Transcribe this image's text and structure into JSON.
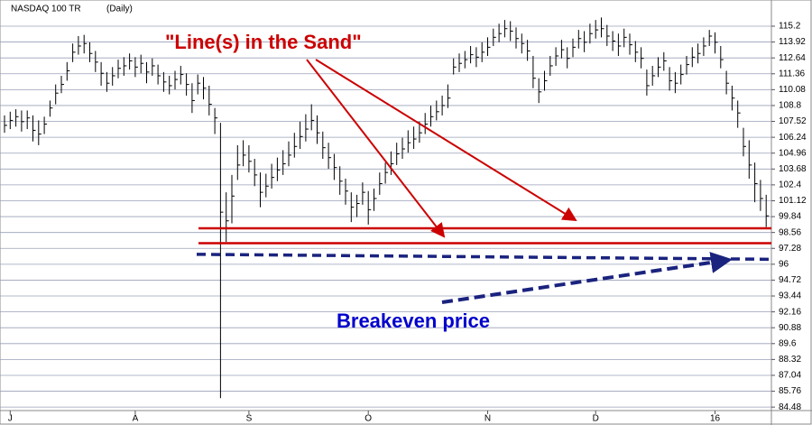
{
  "chart_data": {
    "type": "ohlc",
    "title": "NASDAQ 100 TR",
    "subtitle": "(Daily)",
    "annotations": {
      "sand": "\"Line(s) in the Sand\"",
      "breakeven": "Breakeven price"
    },
    "ylim": [
      84.2,
      116
    ],
    "yticks": [
      84.48,
      85.76,
      87.04,
      88.32,
      89.6,
      90.88,
      92.16,
      93.44,
      94.72,
      96,
      97.28,
      98.56,
      99.84,
      101.12,
      102.4,
      103.68,
      104.96,
      106.24,
      107.52,
      108.8,
      110.08,
      111.36,
      112.64,
      113.92,
      115.2
    ],
    "xticks": [
      {
        "value": 1,
        "label": "J"
      },
      {
        "value": 23,
        "label": "A"
      },
      {
        "value": 43,
        "label": "S"
      },
      {
        "value": 64,
        "label": "O"
      },
      {
        "value": 85,
        "label": "N"
      },
      {
        "value": 104,
        "label": "D"
      },
      {
        "value": 125,
        "label": "16"
      }
    ],
    "grid": true,
    "color": "#000000",
    "sand_lines": {
      "values": [
        98.9,
        97.7
      ],
      "color": "#cc0000"
    },
    "breakeven_line": {
      "values": [
        96.8,
        96.4
      ],
      "color": "#1a237e"
    },
    "high": [
      108.0,
      108.3,
      108.5,
      108.4,
      108.4,
      108.0,
      107.6,
      107.9,
      109.2,
      110.5,
      111.2,
      112.3,
      113.8,
      114.4,
      114.5,
      113.9,
      113.2,
      112.3,
      111.5,
      111.9,
      112.5,
      112.7,
      113.0,
      112.7,
      112.9,
      112.3,
      112.6,
      112.1,
      111.5,
      111.2,
      111.6,
      112.0,
      111.4,
      110.6,
      111.3,
      111.1,
      110.4,
      108.6,
      107.4,
      101.8,
      103.2,
      105.6,
      106.0,
      105.6,
      104.5,
      103.4,
      103.3,
      104.1,
      104.6,
      105.2,
      105.9,
      106.6,
      107.5,
      108.1,
      108.9,
      108.0,
      106.7,
      105.8,
      104.9,
      103.9,
      102.9,
      101.8,
      101.6,
      102.6,
      101.9,
      102.1,
      103.4,
      104.2,
      105.1,
      105.8,
      106.2,
      106.8,
      107.1,
      107.5,
      108.2,
      108.8,
      109.2,
      109.6,
      110.5,
      112.6,
      113.0,
      113.2,
      113.6,
      113.5,
      113.9,
      114.3,
      115.0,
      115.4,
      115.7,
      115.6,
      115.1,
      114.6,
      114.1,
      112.8,
      111.0,
      111.6,
      112.8,
      113.5,
      114.1,
      113.5,
      114.2,
      114.9,
      114.8,
      115.4,
      115.7,
      115.9,
      115.3,
      114.8,
      114.6,
      115.0,
      114.6,
      114.0,
      113.5,
      111.7,
      112.0,
      112.7,
      113.1,
      111.9,
      111.5,
      112.1,
      112.8,
      113.5,
      113.8,
      114.3,
      114.9,
      114.7,
      113.6,
      111.6,
      110.4,
      109.2,
      107.0,
      106.0,
      104.2,
      102.8,
      101.6
    ],
    "low": [
      106.6,
      106.9,
      107.1,
      106.7,
      106.9,
      105.9,
      105.6,
      106.5,
      107.9,
      108.9,
      109.8,
      110.8,
      112.3,
      112.9,
      113.0,
      112.3,
      111.5,
      110.4,
      109.9,
      110.4,
      111.0,
      111.2,
      111.7,
      111.1,
      111.4,
      110.6,
      111.2,
      110.5,
      109.9,
      109.7,
      110.1,
      110.5,
      109.6,
      108.2,
      109.7,
      109.3,
      108.0,
      106.5,
      85.2,
      97.8,
      99.3,
      102.8,
      103.9,
      103.4,
      102.3,
      100.6,
      101.4,
      102.1,
      102.7,
      103.2,
      103.9,
      104.6,
      105.3,
      105.9,
      106.8,
      105.7,
      104.5,
      103.7,
      102.8,
      101.6,
      100.8,
      99.4,
      99.8,
      100.8,
      99.2,
      100.3,
      101.6,
      102.5,
      103.2,
      104.0,
      104.5,
      105.0,
      105.3,
      105.8,
      106.5,
      107.1,
      107.6,
      108.0,
      108.6,
      111.3,
      111.5,
      111.8,
      112.2,
      111.9,
      112.3,
      112.8,
      113.6,
      113.9,
      114.3,
      114.0,
      113.4,
      113.0,
      112.4,
      110.2,
      109.0,
      110.0,
      111.2,
      112.0,
      112.6,
      111.8,
      112.7,
      113.4,
      113.1,
      113.8,
      114.2,
      114.3,
      113.6,
      113.2,
      112.8,
      113.5,
      112.9,
      112.3,
      111.8,
      109.6,
      110.4,
      111.1,
      111.6,
      110.0,
      109.8,
      110.5,
      111.3,
      111.9,
      112.2,
      112.8,
      113.6,
      113.0,
      111.8,
      109.7,
      108.4,
      107.0,
      104.7,
      102.9,
      101.0,
      100.3,
      99.0
    ],
    "close": [
      107.2,
      107.6,
      107.9,
      107.5,
      107.8,
      106.8,
      106.5,
      107.3,
      108.6,
      109.8,
      110.5,
      111.6,
      113.1,
      113.6,
      113.8,
      113.0,
      112.3,
      111.4,
      110.6,
      111.2,
      111.8,
      112.0,
      112.4,
      111.9,
      112.2,
      111.5,
      112.0,
      111.2,
      110.7,
      110.4,
      110.9,
      111.3,
      110.5,
      109.2,
      110.6,
      110.2,
      108.9,
      107.8,
      100.2,
      99.5,
      101.5,
      104.0,
      104.8,
      104.3,
      103.2,
      101.8,
      102.3,
      103.0,
      103.6,
      104.1,
      104.8,
      105.5,
      106.3,
      106.9,
      107.6,
      106.6,
      105.4,
      104.6,
      103.8,
      102.7,
      101.9,
      100.6,
      100.9,
      101.8,
      100.4,
      101.3,
      102.5,
      103.4,
      104.1,
      104.9,
      105.3,
      105.8,
      106.1,
      106.6,
      107.3,
      107.9,
      108.3,
      108.8,
      109.4,
      111.9,
      112.2,
      112.5,
      112.9,
      112.7,
      113.1,
      113.5,
      114.3,
      114.6,
      115.0,
      114.8,
      114.2,
      113.8,
      113.2,
      111.0,
      109.9,
      110.8,
      112.0,
      112.8,
      113.3,
      112.6,
      113.5,
      114.2,
      113.9,
      114.6,
      114.9,
      115.0,
      114.4,
      114.0,
      113.6,
      114.3,
      113.7,
      113.1,
      112.6,
      110.4,
      111.2,
      111.9,
      112.4,
      110.8,
      110.6,
      111.3,
      112.1,
      112.7,
      113.0,
      113.6,
      114.4,
      113.9,
      112.5,
      110.6,
      109.4,
      108.2,
      105.5,
      104.0,
      102.5,
      101.3,
      99.9
    ]
  }
}
